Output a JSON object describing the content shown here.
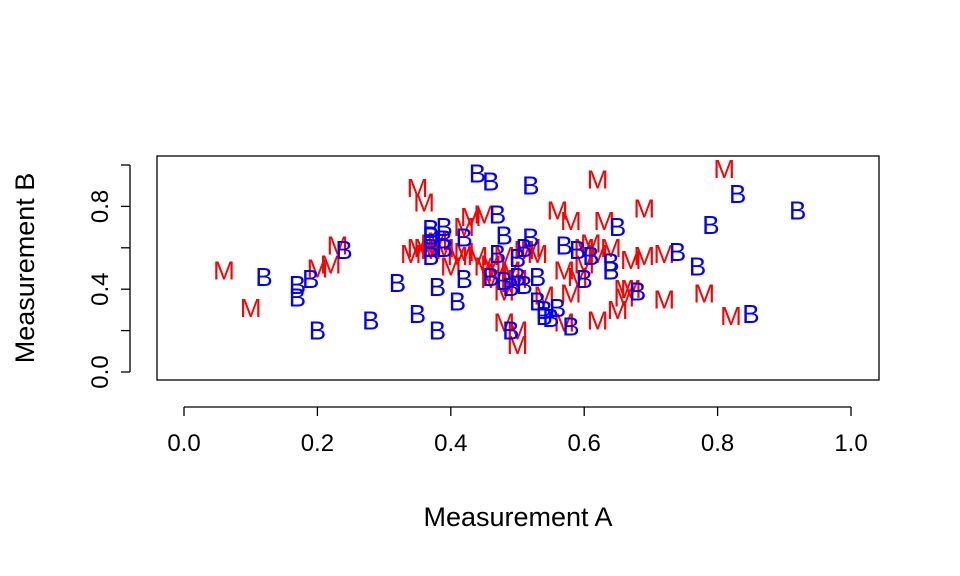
{
  "chart_data": {
    "type": "scatter",
    "title": "",
    "xlabel": "Measurement A",
    "ylabel": "Measurement B",
    "xlim": [
      0.0,
      1.0
    ],
    "ylim": [
      0.0,
      1.0
    ],
    "x_ticks": [
      "0.0",
      "0.2",
      "0.4",
      "0.6",
      "0.8",
      "1.0"
    ],
    "y_ticks": [
      "0.0",
      "0.4",
      "0.8"
    ],
    "grid": false,
    "legend": "none",
    "series": [
      {
        "label": "M",
        "color": "#ff0000",
        "points": [
          [
            0.06,
            0.49
          ],
          [
            0.1,
            0.31
          ],
          [
            0.2,
            0.5
          ],
          [
            0.22,
            0.52
          ],
          [
            0.23,
            0.61
          ],
          [
            0.34,
            0.57
          ],
          [
            0.35,
            0.89
          ],
          [
            0.35,
            0.6
          ],
          [
            0.36,
            0.82
          ],
          [
            0.36,
            0.6
          ],
          [
            0.37,
            0.59
          ],
          [
            0.37,
            0.62
          ],
          [
            0.38,
            0.63
          ],
          [
            0.39,
            0.6
          ],
          [
            0.4,
            0.51
          ],
          [
            0.41,
            0.56
          ],
          [
            0.42,
            0.7
          ],
          [
            0.42,
            0.58
          ],
          [
            0.43,
            0.75
          ],
          [
            0.44,
            0.56
          ],
          [
            0.45,
            0.76
          ],
          [
            0.45,
            0.51
          ],
          [
            0.46,
            0.52
          ],
          [
            0.46,
            0.45
          ],
          [
            0.47,
            0.48
          ],
          [
            0.48,
            0.56
          ],
          [
            0.48,
            0.39
          ],
          [
            0.48,
            0.24
          ],
          [
            0.49,
            0.43
          ],
          [
            0.49,
            0.49
          ],
          [
            0.5,
            0.45
          ],
          [
            0.5,
            0.2
          ],
          [
            0.5,
            0.13
          ],
          [
            0.51,
            0.59
          ],
          [
            0.52,
            0.6
          ],
          [
            0.53,
            0.57
          ],
          [
            0.54,
            0.37
          ],
          [
            0.56,
            0.78
          ],
          [
            0.57,
            0.49
          ],
          [
            0.57,
            0.24
          ],
          [
            0.58,
            0.38
          ],
          [
            0.58,
            0.73
          ],
          [
            0.59,
            0.46
          ],
          [
            0.6,
            0.52
          ],
          [
            0.6,
            0.6
          ],
          [
            0.61,
            0.62
          ],
          [
            0.62,
            0.93
          ],
          [
            0.62,
            0.57
          ],
          [
            0.62,
            0.25
          ],
          [
            0.63,
            0.73
          ],
          [
            0.64,
            0.6
          ],
          [
            0.65,
            0.3
          ],
          [
            0.66,
            0.4
          ],
          [
            0.66,
            0.36
          ],
          [
            0.67,
            0.54
          ],
          [
            0.67,
            0.4
          ],
          [
            0.69,
            0.79
          ],
          [
            0.69,
            0.56
          ],
          [
            0.72,
            0.35
          ],
          [
            0.72,
            0.57
          ],
          [
            0.78,
            0.38
          ],
          [
            0.81,
            0.98
          ],
          [
            0.82,
            0.27
          ]
        ]
      },
      {
        "label": "B",
        "color": "#0000ff",
        "points": [
          [
            0.12,
            0.46
          ],
          [
            0.17,
            0.36
          ],
          [
            0.17,
            0.42
          ],
          [
            0.19,
            0.45
          ],
          [
            0.2,
            0.2
          ],
          [
            0.24,
            0.59
          ],
          [
            0.28,
            0.25
          ],
          [
            0.32,
            0.43
          ],
          [
            0.35,
            0.28
          ],
          [
            0.37,
            0.69
          ],
          [
            0.37,
            0.66
          ],
          [
            0.37,
            0.6
          ],
          [
            0.37,
            0.56
          ],
          [
            0.38,
            0.41
          ],
          [
            0.38,
            0.2
          ],
          [
            0.39,
            0.7
          ],
          [
            0.39,
            0.64
          ],
          [
            0.39,
            0.6
          ],
          [
            0.41,
            0.34
          ],
          [
            0.42,
            0.45
          ],
          [
            0.42,
            0.65
          ],
          [
            0.44,
            0.96
          ],
          [
            0.46,
            0.92
          ],
          [
            0.46,
            0.46
          ],
          [
            0.47,
            0.57
          ],
          [
            0.47,
            0.76
          ],
          [
            0.48,
            0.44
          ],
          [
            0.48,
            0.66
          ],
          [
            0.49,
            0.41
          ],
          [
            0.49,
            0.2
          ],
          [
            0.5,
            0.46
          ],
          [
            0.5,
            0.55
          ],
          [
            0.51,
            0.6
          ],
          [
            0.51,
            0.42
          ],
          [
            0.52,
            0.9
          ],
          [
            0.52,
            0.65
          ],
          [
            0.53,
            0.46
          ],
          [
            0.53,
            0.34
          ],
          [
            0.54,
            0.3
          ],
          [
            0.54,
            0.27
          ],
          [
            0.55,
            0.26
          ],
          [
            0.56,
            0.31
          ],
          [
            0.57,
            0.61
          ],
          [
            0.58,
            0.22
          ],
          [
            0.59,
            0.59
          ],
          [
            0.6,
            0.45
          ],
          [
            0.61,
            0.56
          ],
          [
            0.64,
            0.53
          ],
          [
            0.64,
            0.49
          ],
          [
            0.65,
            0.7
          ],
          [
            0.68,
            0.39
          ],
          [
            0.74,
            0.58
          ],
          [
            0.77,
            0.51
          ],
          [
            0.79,
            0.71
          ],
          [
            0.83,
            0.86
          ],
          [
            0.85,
            0.28
          ],
          [
            0.92,
            0.78
          ]
        ]
      }
    ]
  }
}
